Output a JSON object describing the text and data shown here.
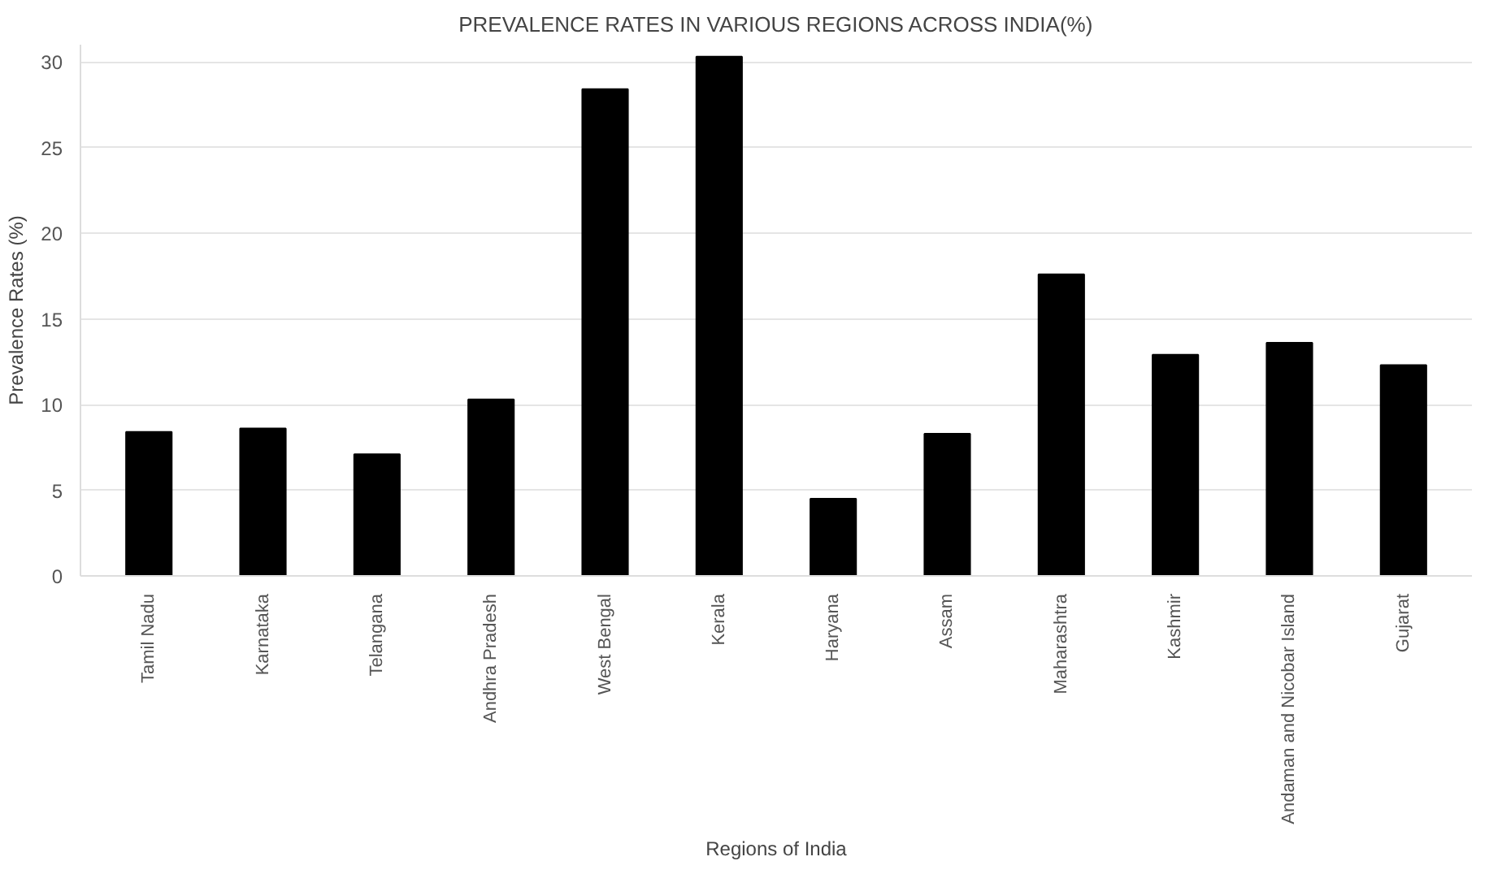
{
  "chart_data": {
    "type": "bar",
    "title": "PREVALENCE RATES IN VARIOUS REGIONS ACROSS INDIA(%)",
    "xlabel": "Regions of India",
    "ylabel": "Prevalence Rates (%)",
    "categories": [
      "Tamil Nadu",
      "Karnataka",
      "Telangana",
      "Andhra Pradesh",
      "West Bengal",
      "Kerala",
      "Haryana",
      "Assam",
      "Maharashtra",
      "Kashmir",
      "Andaman and Nicobar Island",
      "Gujarat"
    ],
    "values": [
      8.4,
      8.6,
      7.1,
      10.3,
      28.4,
      30.3,
      4.5,
      8.3,
      17.6,
      12.9,
      13.6,
      12.3
    ],
    "color": "#000000",
    "ylim": [
      0,
      31
    ],
    "yticks": [
      0,
      5,
      10,
      15,
      20,
      25,
      30
    ],
    "grid": "y"
  }
}
